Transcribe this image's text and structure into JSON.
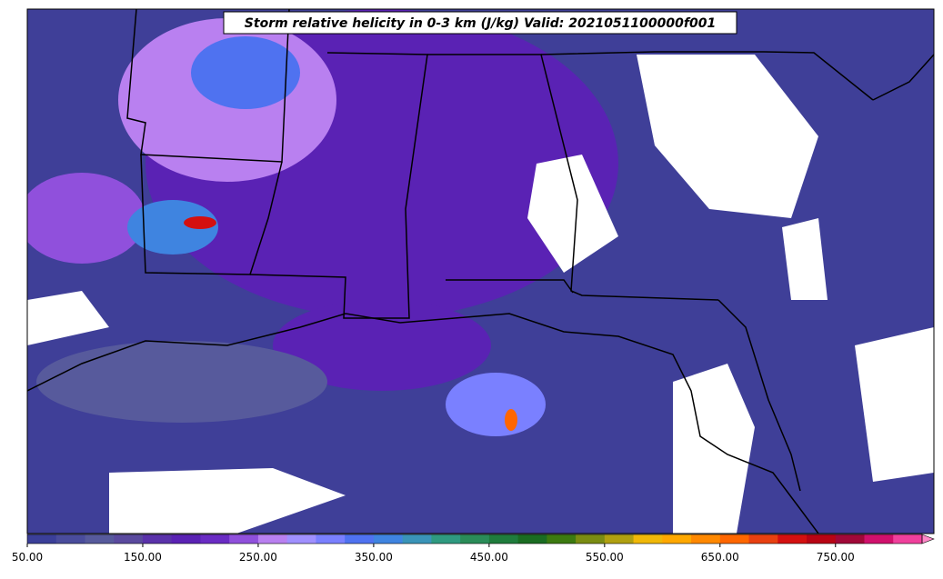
{
  "chart_data": {
    "type": "contour-map",
    "title": "Storm relative helicity in 0-3 km (J/kg) Valid: 2021051100000f001",
    "colorbar": {
      "lim": [
        50,
        825
      ],
      "ticks": [
        {
          "value": 50,
          "label": "50.00"
        },
        {
          "value": 150,
          "label": "150.00"
        },
        {
          "value": 250,
          "label": "250.00"
        },
        {
          "value": 350,
          "label": "350.00"
        },
        {
          "value": 450,
          "label": "450.00"
        },
        {
          "value": 550,
          "label": "550.00"
        },
        {
          "value": 650,
          "label": "650.00"
        },
        {
          "value": 750,
          "label": "750.00"
        }
      ],
      "colors": [
        "#3b3f99",
        "#4a4c9c",
        "#575a9c",
        "#5a4a9e",
        "#5a32aa",
        "#5a22b4",
        "#6a2cc4",
        "#9050dc",
        "#b980f0",
        "#a090ff",
        "#7a80ff",
        "#4f72f0",
        "#3f84e0",
        "#3a94b8",
        "#2f9a80",
        "#2a8c58",
        "#1f7c3c",
        "#1a6c22",
        "#3c7a10",
        "#7a8c12",
        "#b0a010",
        "#f0b808",
        "#ffa800",
        "#ff8800",
        "#ff6600",
        "#e84010",
        "#d41010",
        "#b80414",
        "#a00838",
        "#d0106c",
        "#f0409c"
      ],
      "extend_color": "#ff88c8"
    }
  }
}
